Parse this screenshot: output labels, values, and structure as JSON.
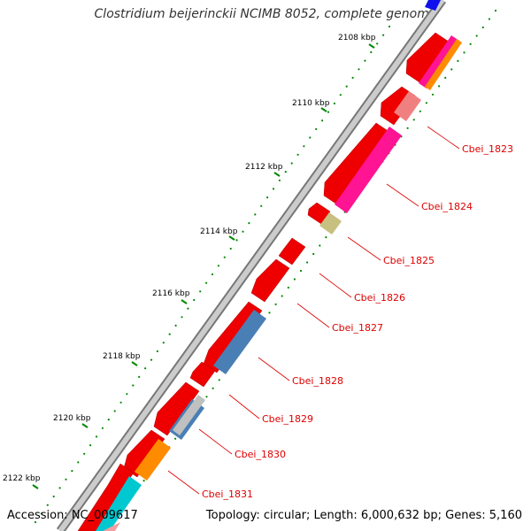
{
  "title": "Clostridium beijerinckii NCIMB 8052, complete genome",
  "footer": {
    "accession": "Accession: NC_009617",
    "summary": "Topology: circular; Length: 6,000,632 bp; Genes: 5,160"
  },
  "ruler_labels": [
    "2108 kbp",
    "2110 kbp",
    "2112 kbp",
    "2114 kbp",
    "2116 kbp",
    "2118 kbp",
    "2120 kbp",
    "2122 kbp"
  ],
  "gene_labels": [
    "Cbei_1823",
    "Cbei_1824",
    "Cbei_1825",
    "Cbei_1826",
    "Cbei_1827",
    "Cbei_1828",
    "Cbei_1829",
    "Cbei_1830",
    "Cbei_1831"
  ],
  "colors": {
    "backbone": "#aaaaaa",
    "forward_strand": "#ee0000",
    "ruler_ticks": "#008800",
    "leader_lines": "#dd0000",
    "salmon": "#f08080",
    "magenta": "#ff1493",
    "olive": "#c8c080",
    "steel_blue": "#4a7fb5",
    "light_gray": "#c0c0c0",
    "orange": "#ff8c00",
    "cyan": "#00c8d0",
    "blue": "#1010ee"
  }
}
